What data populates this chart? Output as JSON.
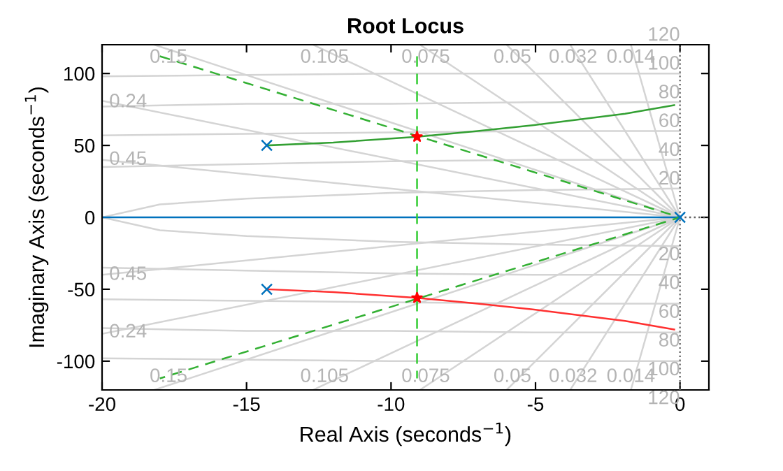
{
  "chart_data": {
    "type": "line",
    "title": "Root Locus",
    "xlabel": "Real Axis (seconds$^{−1}$)",
    "ylabel": "Imaginary Axis (seconds$^{−1}$)",
    "xlim": [
      -20,
      1
    ],
    "xticks": [
      -20,
      -15,
      -10,
      -5,
      0
    ],
    "ylim": [
      -120,
      120
    ],
    "yticks": [
      -100,
      -50,
      0,
      50,
      100
    ],
    "legend": false,
    "ref_lines": [
      {
        "axis": "x",
        "value": 0,
        "color": "#606060",
        "line_style": "dotted"
      }
    ],
    "series": [
      {
        "color": "#d4d4d4",
        "x": [
          -20,
          0,
          -20
        ],
        "values": [
          40,
          0,
          -40
        ]
      },
      {
        "color": "#d4d4d4",
        "x": [
          -20,
          0,
          -20
        ],
        "values": [
          81,
          0,
          -81
        ]
      },
      {
        "color": "#d4d4d4",
        "x": [
          -18.2,
          0,
          -18.2
        ],
        "values": [
          120,
          0,
          -120
        ]
      },
      {
        "color": "#d4d4d4",
        "x": [
          -12.7,
          0,
          -12.7
        ],
        "values": [
          120,
          0,
          -120
        ]
      },
      {
        "color": "#d4d4d4",
        "x": [
          -9,
          0,
          -9
        ],
        "values": [
          120,
          0,
          -120
        ]
      },
      {
        "color": "#d4d4d4",
        "x": [
          -6,
          0,
          -6
        ],
        "values": [
          120,
          0,
          -120
        ]
      },
      {
        "color": "#d4d4d4",
        "x": [
          -3.8,
          0,
          -3.8
        ],
        "values": [
          120,
          0,
          -120
        ]
      },
      {
        "color": "#d4d4d4",
        "x": [
          -1.7,
          0,
          -1.7
        ],
        "values": [
          120,
          0,
          -120
        ]
      },
      {
        "color": "#d4d4d4",
        "x": [
          -20,
          -18,
          -15,
          -10,
          -5,
          0
        ],
        "values": [
          0,
          9,
          13,
          17,
          19,
          20
        ]
      },
      {
        "color": "#d4d4d4",
        "x": [
          -20,
          -18,
          -15,
          -10,
          -5,
          0
        ],
        "values": [
          0,
          -9,
          -13,
          -17,
          -19,
          -20
        ]
      },
      {
        "color": "#d4d4d4",
        "x": [
          -20,
          -15,
          -10,
          -5,
          0
        ],
        "values": [
          35,
          37,
          39,
          40,
          40
        ]
      },
      {
        "color": "#d4d4d4",
        "x": [
          -20,
          -15,
          -10,
          -5,
          0
        ],
        "values": [
          -35,
          -37,
          -39,
          -40,
          -40
        ]
      },
      {
        "color": "#d4d4d4",
        "x": [
          -20,
          -15,
          -10,
          -5,
          0
        ],
        "values": [
          57,
          58,
          59,
          60,
          60
        ]
      },
      {
        "color": "#d4d4d4",
        "x": [
          -20,
          -15,
          -10,
          -5,
          0
        ],
        "values": [
          -57,
          -58,
          -59,
          -60,
          -60
        ]
      },
      {
        "color": "#d4d4d4",
        "x": [
          -20,
          -15,
          -10,
          -5,
          0
        ],
        "values": [
          77,
          79,
          79,
          80,
          80
        ]
      },
      {
        "color": "#d4d4d4",
        "x": [
          -20,
          -15,
          -10,
          -5,
          0
        ],
        "values": [
          -77,
          -79,
          -79,
          -80,
          -80
        ]
      },
      {
        "color": "#d4d4d4",
        "x": [
          -20,
          -15,
          -10,
          -5,
          0
        ],
        "values": [
          98,
          99,
          100,
          100,
          100
        ]
      },
      {
        "color": "#d4d4d4",
        "x": [
          -20,
          -15,
          -10,
          -5,
          0
        ],
        "values": [
          -98,
          -99,
          -100,
          -100,
          -100
        ]
      },
      {
        "color": "#606060",
        "line_style": "dotted",
        "x": [
          0,
          1
        ],
        "values": [
          0,
          0
        ]
      },
      {
        "color": "#0072bd",
        "x": [
          -20,
          0
        ],
        "values": [
          0,
          0
        ]
      },
      {
        "color": "#33a033",
        "x": [
          -14.3,
          -12,
          -9.1,
          -7,
          -5.1,
          -3.5,
          -1.9,
          -0.2
        ],
        "values": [
          50,
          52,
          56,
          60,
          64,
          68,
          72,
          78
        ]
      },
      {
        "color": "#ff3030",
        "x": [
          -14.3,
          -12,
          -9.1,
          -7,
          -5.1,
          -3.5,
          -1.9,
          -0.2
        ],
        "values": [
          -50,
          -52,
          -56,
          -60,
          -64,
          -68,
          -72,
          -78
        ]
      },
      {
        "color": "#33b033",
        "line_style": "dashed",
        "x": [
          -18,
          0,
          -18
        ],
        "values": [
          112,
          0,
          -112
        ]
      },
      {
        "color": "#33cc33",
        "line_style": "dashed",
        "x": [
          -9.1,
          -9.1
        ],
        "values": [
          112,
          -112
        ]
      },
      {
        "type": "scatter",
        "color": "#0072bd",
        "marker": "cross",
        "x": [
          -14.3,
          -14.3,
          0
        ],
        "values": [
          50,
          -50,
          0
        ]
      },
      {
        "type": "scatter",
        "color": "#ff0000",
        "marker": "star",
        "x": [
          -9.1,
          -9.1
        ],
        "values": [
          56,
          -56
        ]
      }
    ],
    "annotations": [
      {
        "text": "0.15",
        "x": -17.7,
        "y": 111
      },
      {
        "text": "0.105",
        "x": -12.3,
        "y": 111
      },
      {
        "text": "0.075",
        "x": -8.8,
        "y": 111
      },
      {
        "text": "0.05",
        "x": -5.8,
        "y": 111
      },
      {
        "text": "0.032",
        "x": -3.7,
        "y": 111
      },
      {
        "text": "0.014",
        "x": -1.7,
        "y": 111
      },
      {
        "text": "0.24",
        "x": -19.1,
        "y": 80
      },
      {
        "text": "0.45",
        "x": -19.1,
        "y": 40
      },
      {
        "text": "0.15",
        "x": -17.7,
        "y": -111
      },
      {
        "text": "0.105",
        "x": -12.3,
        "y": -111
      },
      {
        "text": "0.075",
        "x": -8.8,
        "y": -111
      },
      {
        "text": "0.05",
        "x": -5.8,
        "y": -111
      },
      {
        "text": "0.032",
        "x": -3.7,
        "y": -111
      },
      {
        "text": "0.014",
        "x": -1.7,
        "y": -111
      },
      {
        "text": "0.24",
        "x": -19.1,
        "y": -80
      },
      {
        "text": "0.45",
        "x": -19.1,
        "y": -40
      },
      {
        "text": "120",
        "x": 0,
        "y": 120
      },
      {
        "text": "100",
        "x": 0,
        "y": 100
      },
      {
        "text": "80",
        "x": 0,
        "y": 80
      },
      {
        "text": "60",
        "x": 0,
        "y": 60
      },
      {
        "text": "40",
        "x": 0,
        "y": 40
      },
      {
        "text": "20",
        "x": 0,
        "y": 20
      },
      {
        "text": "20",
        "x": 0,
        "y": -20
      },
      {
        "text": "40",
        "x": 0,
        "y": -40
      },
      {
        "text": "60",
        "x": 0,
        "y": -60
      },
      {
        "text": "80",
        "x": 0,
        "y": -80
      },
      {
        "text": "100",
        "x": 0,
        "y": -100
      },
      {
        "text": "120",
        "x": 0,
        "y": -120
      }
    ]
  }
}
